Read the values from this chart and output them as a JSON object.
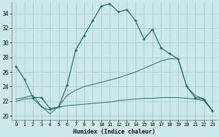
{
  "xlabel": "Humidex (Indice chaleur)",
  "bg_color": "#cce8e8",
  "grid_color": "#aacccc",
  "line_color": "#1a6b5a",
  "ylim": [
    19.5,
    35.5
  ],
  "xlim": [
    -0.5,
    23.5
  ],
  "yticks": [
    20,
    22,
    24,
    26,
    28,
    30,
    32,
    34
  ],
  "xticks": [
    0,
    1,
    2,
    3,
    4,
    5,
    6,
    7,
    8,
    9,
    10,
    11,
    12,
    13,
    14,
    15,
    16,
    17,
    18,
    19,
    20,
    21,
    22,
    23
  ],
  "series1_x": [
    0,
    1,
    2,
    3,
    4,
    5,
    6,
    7,
    8,
    9,
    10,
    11,
    12,
    13,
    14,
    15,
    16,
    17,
    18,
    19,
    20,
    21,
    22,
    23
  ],
  "series1_y": [
    26.8,
    25.0,
    22.5,
    22.5,
    21.0,
    21.2,
    24.2,
    29.0,
    31.0,
    33.0,
    35.0,
    35.3,
    34.2,
    34.5,
    33.0,
    30.5,
    31.8,
    29.3,
    28.5,
    27.8,
    24.0,
    22.5,
    22.3,
    20.7
  ],
  "series2_x": [
    0,
    1,
    2,
    3,
    4,
    5,
    6,
    7,
    8,
    9,
    10,
    11,
    12,
    13,
    14,
    15,
    16,
    17,
    18,
    19,
    20,
    21,
    22,
    23
  ],
  "series2_y": [
    22.0,
    22.3,
    22.4,
    21.2,
    20.8,
    21.2,
    21.4,
    21.5,
    21.6,
    21.7,
    21.8,
    21.9,
    22.1,
    22.2,
    22.3,
    22.4,
    22.4,
    22.5,
    22.5,
    22.5,
    22.4,
    22.3,
    22.1,
    20.7
  ],
  "series3_x": [
    0,
    1,
    2,
    3,
    4,
    5,
    6,
    7,
    8,
    9,
    10,
    11,
    12,
    13,
    14,
    15,
    16,
    17,
    18,
    19,
    20,
    21,
    22,
    23
  ],
  "series3_y": [
    22.3,
    22.5,
    22.8,
    21.3,
    20.3,
    21.3,
    22.8,
    23.5,
    24.0,
    24.3,
    24.6,
    24.9,
    25.2,
    25.6,
    26.0,
    26.5,
    27.0,
    27.5,
    27.8,
    27.8,
    24.0,
    22.8,
    22.3,
    20.7
  ]
}
